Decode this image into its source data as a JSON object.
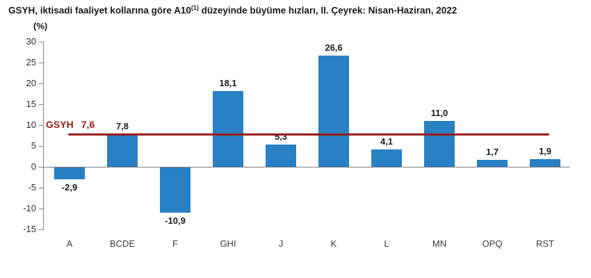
{
  "title": {
    "part1": "GSYH, iktisadi faaliyet kollarına göre A10",
    "sup": "(1)",
    "part2": " düzeyinde büyüme hızları, II. Çeyrek: Nisan-Haziran, 2022"
  },
  "colors": {
    "bar": "#2980C4",
    "reference_line": "#9B1A1A",
    "axis": "#808080",
    "text": "#1a1a1a"
  },
  "chart_data": {
    "type": "bar",
    "title": "GSYH, iktisadi faaliyet kollarına göre A10(1) düzeyinde büyüme hızları, II. Çeyrek: Nisan-Haziran, 2022",
    "unit_label": "(%)",
    "categories": [
      "A",
      "BCDE",
      "F",
      "GHI",
      "J",
      "K",
      "L",
      "MN",
      "OPQ",
      "RST"
    ],
    "values": [
      -2.9,
      7.8,
      -10.9,
      18.1,
      5.3,
      26.6,
      4.1,
      11.0,
      1.7,
      1.9
    ],
    "value_labels": [
      "-2,9",
      "7,8",
      "-10,9",
      "18,1",
      "5,3",
      "26,6",
      "4,1",
      "11,0",
      "1,7",
      "1,9"
    ],
    "ylim": [
      -15,
      30
    ],
    "yticks": [
      30,
      25,
      20,
      15,
      10,
      5,
      0,
      -5,
      -10,
      -15
    ],
    "ytick_labels": [
      "30",
      "25",
      "20",
      "15",
      "10",
      "5",
      "0",
      "-5",
      "-10",
      "-15"
    ],
    "grid": false,
    "legend": null,
    "reference_line": {
      "label": "GSYH",
      "value": 7.6,
      "value_label": "7,6"
    }
  }
}
